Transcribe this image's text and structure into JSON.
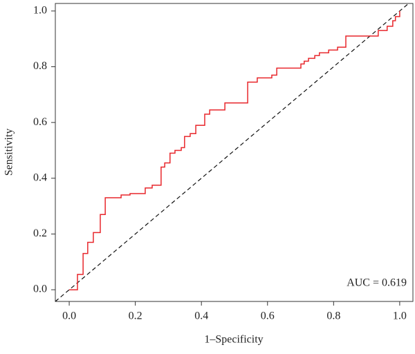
{
  "chart_data": {
    "type": "line",
    "xlabel": "1–Specificity",
    "ylabel": "Sensitivity",
    "annotation": "AUC = 0.619",
    "x": [
      0,
      0.025,
      0.025,
      0.042,
      0.042,
      0.056,
      0.056,
      0.073,
      0.073,
      0.094,
      0.094,
      0.109,
      0.109,
      0.157,
      0.157,
      0.184,
      0.184,
      0.23,
      0.23,
      0.251,
      0.251,
      0.278,
      0.278,
      0.289,
      0.289,
      0.305,
      0.305,
      0.32,
      0.32,
      0.339,
      0.339,
      0.349,
      0.349,
      0.366,
      0.366,
      0.383,
      0.383,
      0.41,
      0.41,
      0.425,
      0.425,
      0.471,
      0.471,
      0.54,
      0.54,
      0.569,
      0.569,
      0.613,
      0.613,
      0.628,
      0.628,
      0.701,
      0.701,
      0.711,
      0.711,
      0.724,
      0.724,
      0.743,
      0.743,
      0.757,
      0.757,
      0.785,
      0.785,
      0.812,
      0.812,
      0.837,
      0.837,
      0.935,
      0.935,
      0.962,
      0.962,
      0.979,
      0.979,
      0.987,
      0.987,
      1,
      1
    ],
    "series": [
      {
        "color": "#e8262b",
        "values": [
          0,
          0,
          0.055,
          0.055,
          0.13,
          0.13,
          0.17,
          0.17,
          0.205,
          0.205,
          0.27,
          0.27,
          0.33,
          0.33,
          0.34,
          0.34,
          0.345,
          0.345,
          0.365,
          0.365,
          0.375,
          0.375,
          0.44,
          0.44,
          0.455,
          0.455,
          0.49,
          0.49,
          0.5,
          0.5,
          0.51,
          0.51,
          0.55,
          0.55,
          0.56,
          0.56,
          0.59,
          0.59,
          0.63,
          0.63,
          0.645,
          0.645,
          0.67,
          0.67,
          0.745,
          0.745,
          0.76,
          0.76,
          0.77,
          0.77,
          0.795,
          0.795,
          0.81,
          0.81,
          0.82,
          0.82,
          0.83,
          0.83,
          0.84,
          0.84,
          0.85,
          0.85,
          0.86,
          0.86,
          0.87,
          0.87,
          0.91,
          0.91,
          0.93,
          0.93,
          0.945,
          0.945,
          0.965,
          0.965,
          0.98,
          0.98,
          1
        ]
      }
    ],
    "xlim": [
      -0.042,
      1.04
    ],
    "ylim": [
      -0.042,
      1.027
    ],
    "xticks": [
      {
        "value": 0,
        "label": "0.0"
      },
      0.2,
      0.4,
      0.6,
      0.8,
      {
        "value": 1,
        "label": "1.0"
      }
    ],
    "yticks": [
      {
        "value": 0,
        "label": "0.0"
      },
      0.2,
      0.4,
      0.6,
      0.8,
      {
        "value": 1,
        "label": "1.0"
      }
    ],
    "diagonal": true
  }
}
